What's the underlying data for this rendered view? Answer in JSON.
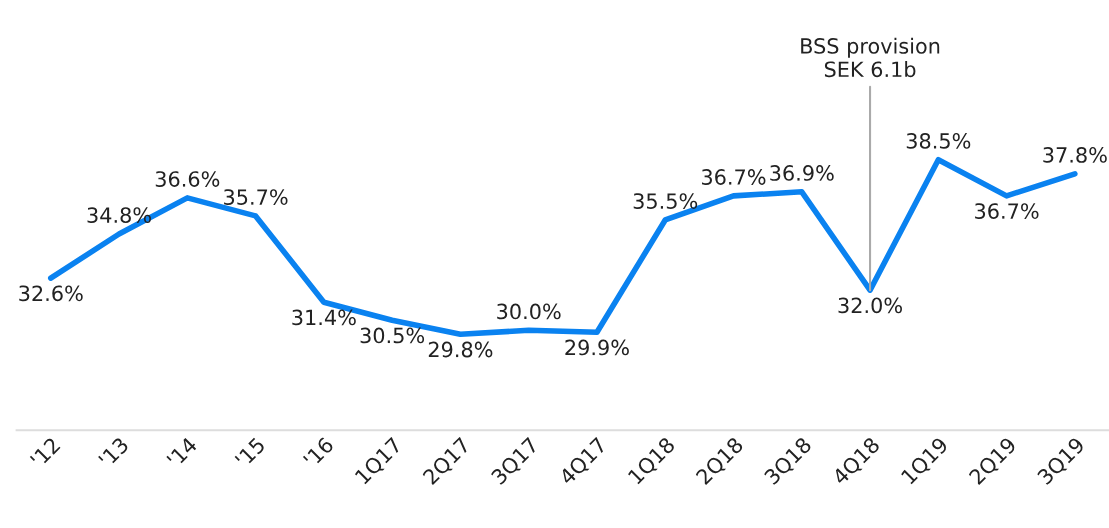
{
  "chart_data": {
    "type": "line",
    "categories": [
      "'12",
      "'13",
      "'14",
      "'15",
      "'16",
      "1Q17",
      "2Q17",
      "3Q17",
      "4Q17",
      "1Q18",
      "2Q18",
      "3Q18",
      "4Q18",
      "1Q19",
      "2Q19",
      "3Q19"
    ],
    "series": [
      {
        "color": "#0a82f0",
        "values": [
          32.6,
          34.8,
          36.6,
          35.7,
          31.4,
          30.5,
          29.8,
          30.0,
          29.9,
          35.5,
          36.7,
          36.9,
          32.0,
          38.5,
          36.7,
          37.8
        ],
        "value_labels": [
          "32.6%",
          "34.8%",
          "36.6%",
          "35.7%",
          "31.4%",
          "30.5%",
          "29.8%",
          "30.0%",
          "29.9%",
          "35.5%",
          "36.7%",
          "36.9%",
          "32.0%",
          "38.5%",
          "36.7%",
          "37.8%"
        ]
      }
    ],
    "annotations": [
      {
        "text": "BSS provision\nSEK 6.1b",
        "x": "4Q18",
        "y": 32.0
      }
    ],
    "grid": false,
    "legend": false,
    "marker": "none",
    "line_style": "solid",
    "tick_labels": "x"
  }
}
